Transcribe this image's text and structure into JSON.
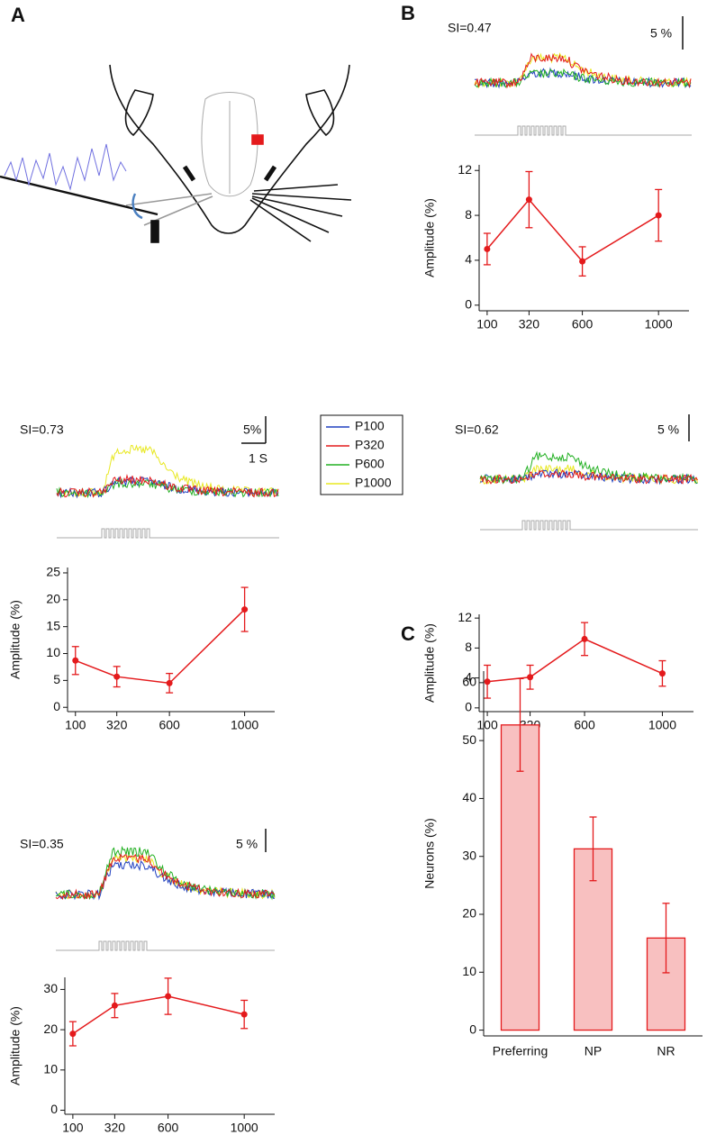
{
  "panel_labels": [
    "A",
    "B",
    "C"
  ],
  "trace_panels": [
    {
      "si": "SI=0.47",
      "scale": "5 %"
    },
    {
      "si": "SI=0.73",
      "scale": "5%",
      "time_scale": "1 S"
    },
    {
      "si": "SI=0.62",
      "scale": "5 %"
    },
    {
      "si": "SI=0.35",
      "scale": "5 %"
    }
  ],
  "trace_legend": [
    {
      "name": "P100",
      "color": "#2040c0"
    },
    {
      "name": "P320",
      "color": "#e41a1c"
    },
    {
      "name": "P600",
      "color": "#22b022"
    },
    {
      "name": "P1000",
      "color": "#e8e820"
    }
  ],
  "chart_data": [
    {
      "type": "line",
      "ylabel": "Amplitude (%)",
      "x": [
        100,
        320,
        600,
        1000
      ],
      "xlim": [
        58,
        1160
      ],
      "xticks": [
        100,
        320,
        600,
        1000
      ],
      "values": [
        5.0,
        9.4,
        3.9,
        8.0
      ],
      "errors": [
        1.4,
        2.5,
        1.3,
        2.3
      ],
      "color": "#e41a1c",
      "ylim": [
        -0.5,
        12.5
      ],
      "yticks": [
        0,
        4,
        8,
        12
      ]
    },
    {
      "type": "line",
      "ylabel": "Amplitude (%)",
      "x": [
        100,
        320,
        600,
        1000
      ],
      "xlim": [
        58,
        1160
      ],
      "xticks": [
        100,
        320,
        600,
        1000
      ],
      "values": [
        8.7,
        5.7,
        4.5,
        18.2
      ],
      "errors": [
        2.6,
        1.9,
        1.8,
        4.1
      ],
      "color": "#e41a1c",
      "ylim": [
        -0.8,
        26
      ],
      "yticks": [
        0,
        5,
        10,
        15,
        20,
        25
      ]
    },
    {
      "type": "line",
      "ylabel": "Amplitude (%)",
      "x": [
        100,
        320,
        600,
        1000
      ],
      "xlim": [
        58,
        1160
      ],
      "xticks": [
        100,
        320,
        600,
        1000
      ],
      "values": [
        3.5,
        4.1,
        9.2,
        4.6
      ],
      "errors": [
        2.2,
        1.6,
        2.2,
        1.7
      ],
      "color": "#e41a1c",
      "ylim": [
        -0.5,
        12.5
      ],
      "yticks": [
        0,
        4,
        8,
        12
      ]
    },
    {
      "type": "line",
      "ylabel": "Amplitude (%)",
      "x": [
        100,
        320,
        600,
        1000
      ],
      "xlim": [
        58,
        1160
      ],
      "xticks": [
        100,
        320,
        600,
        1000
      ],
      "values": [
        19,
        26,
        28.3,
        23.8
      ],
      "errors": [
        3,
        3,
        4.5,
        3.5
      ],
      "color": "#e41a1c",
      "ylim": [
        -1,
        33
      ],
      "yticks": [
        0,
        10,
        20,
        30
      ]
    },
    {
      "type": "bar",
      "ylabel": "Neurons (%)",
      "categories": [
        "Preferring",
        "NP",
        "NR"
      ],
      "values": [
        52.7,
        31.3,
        15.9
      ],
      "errors": [
        8,
        5.5,
        6
      ],
      "color": "#f8c0c0",
      "edge_color": "#e41a1c",
      "ylim": [
        -1,
        62
      ],
      "yticks": [
        0,
        10,
        20,
        30,
        40,
        50,
        60
      ]
    }
  ]
}
